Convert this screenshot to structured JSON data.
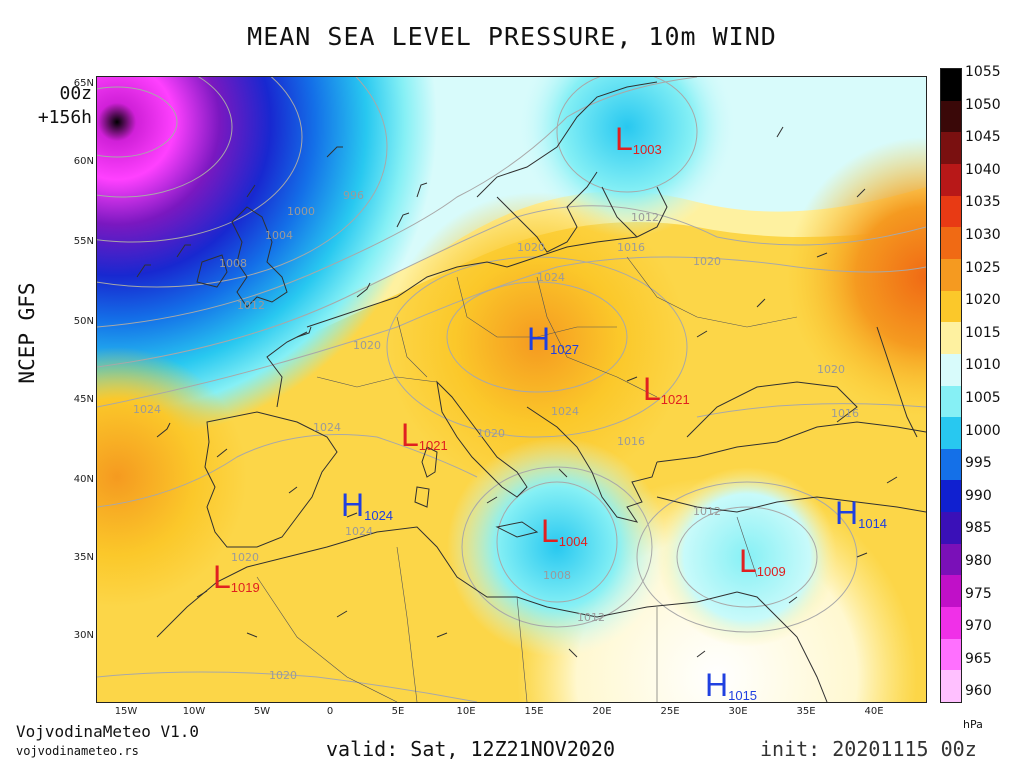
{
  "title": "MEAN SEA LEVEL PRESSURE, 10m WIND",
  "side_label": "NCEP GFS",
  "run": {
    "hour": "00z",
    "step": "+156h"
  },
  "lat_labels": [
    "65N",
    "60N",
    "55N",
    "50N",
    "45N",
    "40N",
    "35N",
    "30N"
  ],
  "lon_labels": [
    "15W",
    "10W",
    "5W",
    "0",
    "5E",
    "10E",
    "15E",
    "20E",
    "25E",
    "30E",
    "35E",
    "40E"
  ],
  "colorbar": {
    "ticks": [
      "1055",
      "1050",
      "1045",
      "1040",
      "1035",
      "1030",
      "1025",
      "1020",
      "1015",
      "1010",
      "1005",
      "1000",
      "995",
      "990",
      "985",
      "980",
      "975",
      "970",
      "965",
      "960"
    ],
    "unit": "hPa",
    "colors": [
      "#000000",
      "#3a0808",
      "#7a1010",
      "#b81818",
      "#e83a14",
      "#f06a14",
      "#f59a20",
      "#fbc82a",
      "#fef1a0",
      "#d8fbfb",
      "#86f0f5",
      "#28c8f0",
      "#1470e8",
      "#1020d0",
      "#3a10b8",
      "#7a10b8",
      "#c010c8",
      "#f030e8",
      "#ff70ff",
      "#ffc0ff"
    ]
  },
  "centers": [
    {
      "type": "L",
      "value": "1003",
      "color": "#e02020"
    },
    {
      "type": "H",
      "value": "1027",
      "color": "#2040e0"
    },
    {
      "type": "L",
      "value": "1021",
      "color": "#e02020"
    },
    {
      "type": "L",
      "value": "1021",
      "color": "#e02020"
    },
    {
      "type": "H",
      "value": "1024",
      "color": "#2040e0"
    },
    {
      "type": "L",
      "value": "1004",
      "color": "#e02020"
    },
    {
      "type": "L",
      "value": "1009",
      "color": "#e02020"
    },
    {
      "type": "H",
      "value": "1014",
      "color": "#2040e0"
    },
    {
      "type": "L",
      "value": "1019",
      "color": "#e02020"
    },
    {
      "type": "H",
      "value": "1015",
      "color": "#2040e0"
    }
  ],
  "isobar_labels": [
    "996",
    "1000",
    "1004",
    "1008",
    "1012",
    "1016",
    "1020",
    "1020",
    "1024",
    "1024",
    "1024",
    "1024",
    "1020",
    "1016",
    "1020",
    "1012",
    "1008",
    "1012",
    "1020",
    "1020",
    "1016",
    "1012",
    "1020",
    "1024"
  ],
  "branding": {
    "name": "VojvodinaMeteo V1.0",
    "site": "vojvodinameteo.rs"
  },
  "valid": "valid: Sat, 12Z21NOV2020",
  "init": "init: 20201115 00z"
}
